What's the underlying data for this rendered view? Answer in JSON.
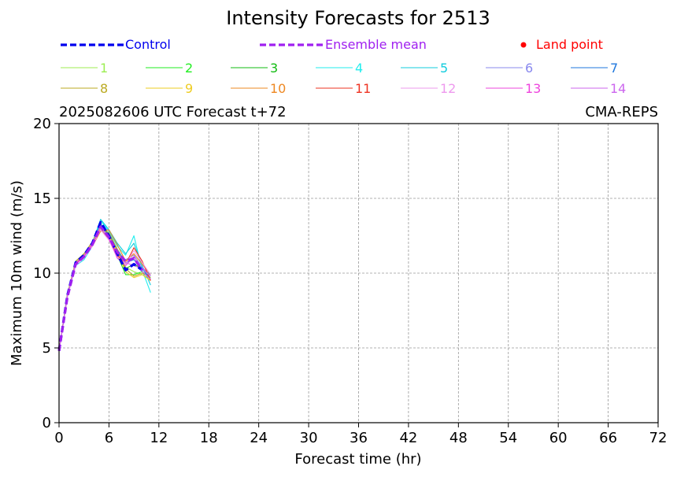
{
  "chart_data": {
    "type": "line",
    "title": "Intensity Forecasts for 2513",
    "subtitle_left": "2025082606 UTC Forecast t+72",
    "subtitle_right": "CMA-REPS",
    "xlabel": "Forecast time (hr)",
    "ylabel": "Maximum 10m wind (m/s)",
    "xlim": [
      0,
      72
    ],
    "ylim": [
      0,
      20
    ],
    "xticks": [
      0,
      6,
      12,
      18,
      24,
      30,
      36,
      42,
      48,
      54,
      60,
      66,
      72
    ],
    "yticks": [
      0,
      5,
      10,
      15,
      20
    ],
    "grid": true,
    "legend_placement": "top",
    "legend": {
      "control": {
        "label": "Control",
        "color": "#0000ee"
      },
      "mean": {
        "label": "Ensemble mean",
        "color": "#a020f0"
      },
      "land": {
        "label": "Land point",
        "color": "#ff0000"
      }
    },
    "series": [
      {
        "name": "Control",
        "color": "#0000ee",
        "style": "dashed-bold",
        "x": [
          0,
          1,
          2,
          3,
          4,
          5,
          6,
          7,
          8,
          9,
          10
        ],
        "y": [
          4.8,
          8.5,
          10.7,
          11.2,
          12.0,
          13.4,
          12.5,
          11.3,
          10.2,
          10.6,
          10.2
        ]
      },
      {
        "name": "Ensemble mean",
        "color": "#a020f0",
        "style": "dashed-bold",
        "x": [
          0,
          1,
          2,
          3,
          4,
          5,
          6,
          7,
          8,
          9,
          10
        ],
        "y": [
          4.8,
          8.4,
          10.6,
          11.1,
          11.9,
          13.1,
          12.4,
          11.4,
          10.8,
          11.0,
          10.2
        ]
      },
      {
        "name": "1",
        "color": "#9cee52",
        "x": [
          0,
          1,
          2,
          3,
          4,
          5,
          6,
          7,
          8,
          9,
          10,
          11
        ],
        "y": [
          4.8,
          8.6,
          10.7,
          11.3,
          12.0,
          13.2,
          12.6,
          11.5,
          10.4,
          10.1,
          9.9,
          9.6
        ]
      },
      {
        "name": "2",
        "color": "#22ee22",
        "x": [
          0,
          1,
          2,
          3,
          4,
          5,
          6,
          7,
          8,
          9,
          10,
          11
        ],
        "y": [
          4.8,
          8.5,
          10.6,
          11.2,
          11.9,
          13.1,
          12.4,
          11.2,
          9.9,
          9.9,
          10.1,
          9.7
        ]
      },
      {
        "name": "3",
        "color": "#11bb11",
        "x": [
          0,
          1,
          2,
          3,
          4,
          5,
          6,
          7,
          8,
          9,
          10,
          11
        ],
        "y": [
          4.8,
          8.5,
          10.7,
          11.1,
          12.1,
          13.3,
          12.5,
          11.3,
          10.3,
          10.6,
          10.3,
          9.9
        ]
      },
      {
        "name": "4",
        "color": "#22eeee",
        "x": [
          0,
          1,
          2,
          3,
          4,
          5,
          6,
          7,
          8,
          9,
          10,
          11
        ],
        "y": [
          4.8,
          8.4,
          10.5,
          10.9,
          11.8,
          13.5,
          12.8,
          11.8,
          11.2,
          12.5,
          10.2,
          8.7
        ]
      },
      {
        "name": "5",
        "color": "#11ccdd",
        "x": [
          0,
          1,
          2,
          3,
          4,
          5,
          6,
          7,
          8,
          9,
          10,
          11
        ],
        "y": [
          4.8,
          8.6,
          10.7,
          11.2,
          12.0,
          13.6,
          12.9,
          12.0,
          11.3,
          12.0,
          10.5,
          9.2
        ]
      },
      {
        "name": "6",
        "color": "#8888ee",
        "x": [
          0,
          1,
          2,
          3,
          4,
          5,
          6,
          7,
          8,
          9,
          10,
          11
        ],
        "y": [
          4.8,
          8.5,
          10.6,
          11.1,
          11.9,
          13.0,
          12.4,
          11.3,
          10.9,
          11.2,
          10.4,
          9.8
        ]
      },
      {
        "name": "7",
        "color": "#1f77dd",
        "x": [
          0,
          1,
          2,
          3,
          4,
          5,
          6,
          7,
          8,
          9,
          10,
          11
        ],
        "y": [
          4.8,
          8.5,
          10.6,
          11.2,
          12.0,
          13.3,
          12.6,
          11.6,
          10.7,
          10.9,
          10.3,
          9.6
        ]
      },
      {
        "name": "8",
        "color": "#bbaa22",
        "x": [
          0,
          1,
          2,
          3,
          4,
          5,
          6,
          7,
          8,
          9,
          10,
          11
        ],
        "y": [
          4.8,
          8.6,
          10.8,
          11.3,
          12.1,
          13.1,
          12.7,
          11.6,
          10.3,
          9.8,
          10.0,
          9.7
        ]
      },
      {
        "name": "9",
        "color": "#eecc22",
        "x": [
          0,
          1,
          2,
          3,
          4,
          5,
          6,
          7,
          8,
          9,
          10,
          11
        ],
        "y": [
          4.8,
          8.5,
          10.7,
          11.2,
          12.0,
          13.0,
          12.5,
          11.4,
          10.1,
          9.7,
          9.9,
          9.5
        ]
      },
      {
        "name": "10",
        "color": "#ee8822",
        "x": [
          0,
          1,
          2,
          3,
          4,
          5,
          6,
          7,
          8,
          9,
          10,
          11
        ],
        "y": [
          4.8,
          8.4,
          10.6,
          11.1,
          11.8,
          12.8,
          12.9,
          11.9,
          10.8,
          11.3,
          10.6,
          9.9
        ]
      },
      {
        "name": "11",
        "color": "#ee3322",
        "x": [
          0,
          1,
          2,
          3,
          4,
          5,
          6,
          7,
          8,
          9,
          10,
          11
        ],
        "y": [
          4.8,
          8.5,
          10.6,
          11.2,
          11.9,
          12.9,
          12.3,
          11.2,
          10.6,
          11.7,
          10.8,
          9.5
        ]
      },
      {
        "name": "12",
        "color": "#ee99ee",
        "x": [
          0,
          1,
          2,
          3,
          4,
          5,
          6,
          7,
          8,
          9,
          10,
          11
        ],
        "y": [
          4.8,
          8.4,
          10.5,
          11.0,
          11.8,
          12.9,
          12.2,
          11.1,
          10.6,
          11.5,
          10.7,
          9.9
        ]
      },
      {
        "name": "13",
        "color": "#ee44dd",
        "x": [
          0,
          1,
          2,
          3,
          4,
          5,
          6,
          7,
          8,
          9,
          10,
          11
        ],
        "y": [
          4.8,
          8.5,
          10.6,
          11.1,
          11.9,
          13.2,
          12.3,
          11.0,
          10.5,
          11.1,
          10.1,
          9.6
        ]
      },
      {
        "name": "14",
        "color": "#cc66ee",
        "x": [
          0,
          1,
          2,
          3,
          4,
          5,
          6,
          7,
          8,
          9,
          10,
          11
        ],
        "y": [
          4.8,
          8.5,
          10.7,
          11.2,
          12.0,
          13.1,
          12.4,
          11.3,
          10.7,
          10.5,
          10.3,
          9.8
        ]
      }
    ]
  }
}
